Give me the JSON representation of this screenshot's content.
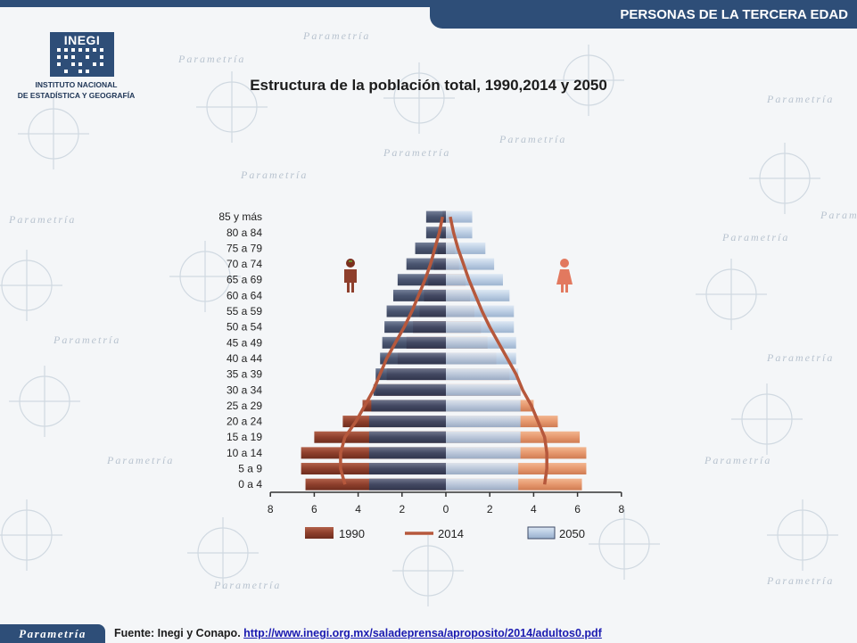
{
  "header": {
    "section_title": "PERSONAS DE LA TERCERA EDAD"
  },
  "logo": {
    "brand": "INEGI",
    "line1": "INSTITUTO NACIONAL",
    "line2": "DE ESTADÍSTICA Y GEOGRAFÍA"
  },
  "watermark": {
    "word": "Parametría"
  },
  "footer": {
    "badge": "Parametría",
    "source_prefix": "Fuente: Inegi y Conapo.",
    "source_url": "http://www.inegi.org.mx/saladeprensa/aproposito/2014/adultos0.pdf"
  },
  "chart_data": {
    "type": "population-pyramid",
    "title": "Estructura de la población total, 1990,2014 y 2050",
    "categories": [
      "0 a 4",
      "5 a 9",
      "10 a 14",
      "15 a 19",
      "20 a 24",
      "25 a 29",
      "30 a 34",
      "35 a 39",
      "40 a 44",
      "45 a 49",
      "50 a 54",
      "55 a 59",
      "60 a 64",
      "65 a 69",
      "70 a 74",
      "75 a 79",
      "80 a 84",
      "85 y más"
    ],
    "x_ticks": [
      "8",
      "6",
      "4",
      "2",
      "0",
      "2",
      "4",
      "6",
      "8"
    ],
    "xlim": [
      0,
      8
    ],
    "series": [
      {
        "name": "1990",
        "kind": "bar",
        "color_men": "#8e3f2c",
        "color_women": "#e6986e",
        "men": [
          6.4,
          6.6,
          6.6,
          6.0,
          4.7,
          3.8,
          3.2,
          2.7,
          2.2,
          1.8,
          1.5,
          1.2,
          1.0,
          0.8,
          0.55,
          0.38,
          0.22,
          0.15
        ],
        "women": [
          6.2,
          6.4,
          6.4,
          6.1,
          5.1,
          4.0,
          3.4,
          2.9,
          2.3,
          1.9,
          1.6,
          1.3,
          1.1,
          0.9,
          0.6,
          0.42,
          0.26,
          0.2
        ]
      },
      {
        "name": "2014",
        "kind": "line",
        "color": "#b6583c",
        "men": [
          4.6,
          4.8,
          4.8,
          4.6,
          4.1,
          3.7,
          3.3,
          3.0,
          2.7,
          2.3,
          1.9,
          1.55,
          1.25,
          0.95,
          0.7,
          0.5,
          0.3,
          0.15
        ],
        "women": [
          4.5,
          4.6,
          4.6,
          4.5,
          4.2,
          3.9,
          3.5,
          3.2,
          2.8,
          2.4,
          2.0,
          1.65,
          1.35,
          1.05,
          0.8,
          0.55,
          0.35,
          0.2
        ]
      },
      {
        "name": "2050",
        "kind": "bar",
        "color_men": "#3d4966",
        "color_women": "#b8cbe2",
        "men": [
          3.5,
          3.5,
          3.5,
          3.5,
          3.5,
          3.4,
          3.3,
          3.2,
          3.0,
          2.9,
          2.8,
          2.7,
          2.4,
          2.2,
          1.8,
          1.4,
          0.9,
          0.9
        ],
        "women": [
          3.3,
          3.3,
          3.4,
          3.4,
          3.4,
          3.4,
          3.4,
          3.3,
          3.2,
          3.2,
          3.1,
          3.1,
          2.9,
          2.6,
          2.2,
          1.8,
          1.2,
          1.2
        ]
      }
    ],
    "legend": [
      "1990",
      "2014",
      "2050"
    ],
    "legend_position": "bottom"
  }
}
